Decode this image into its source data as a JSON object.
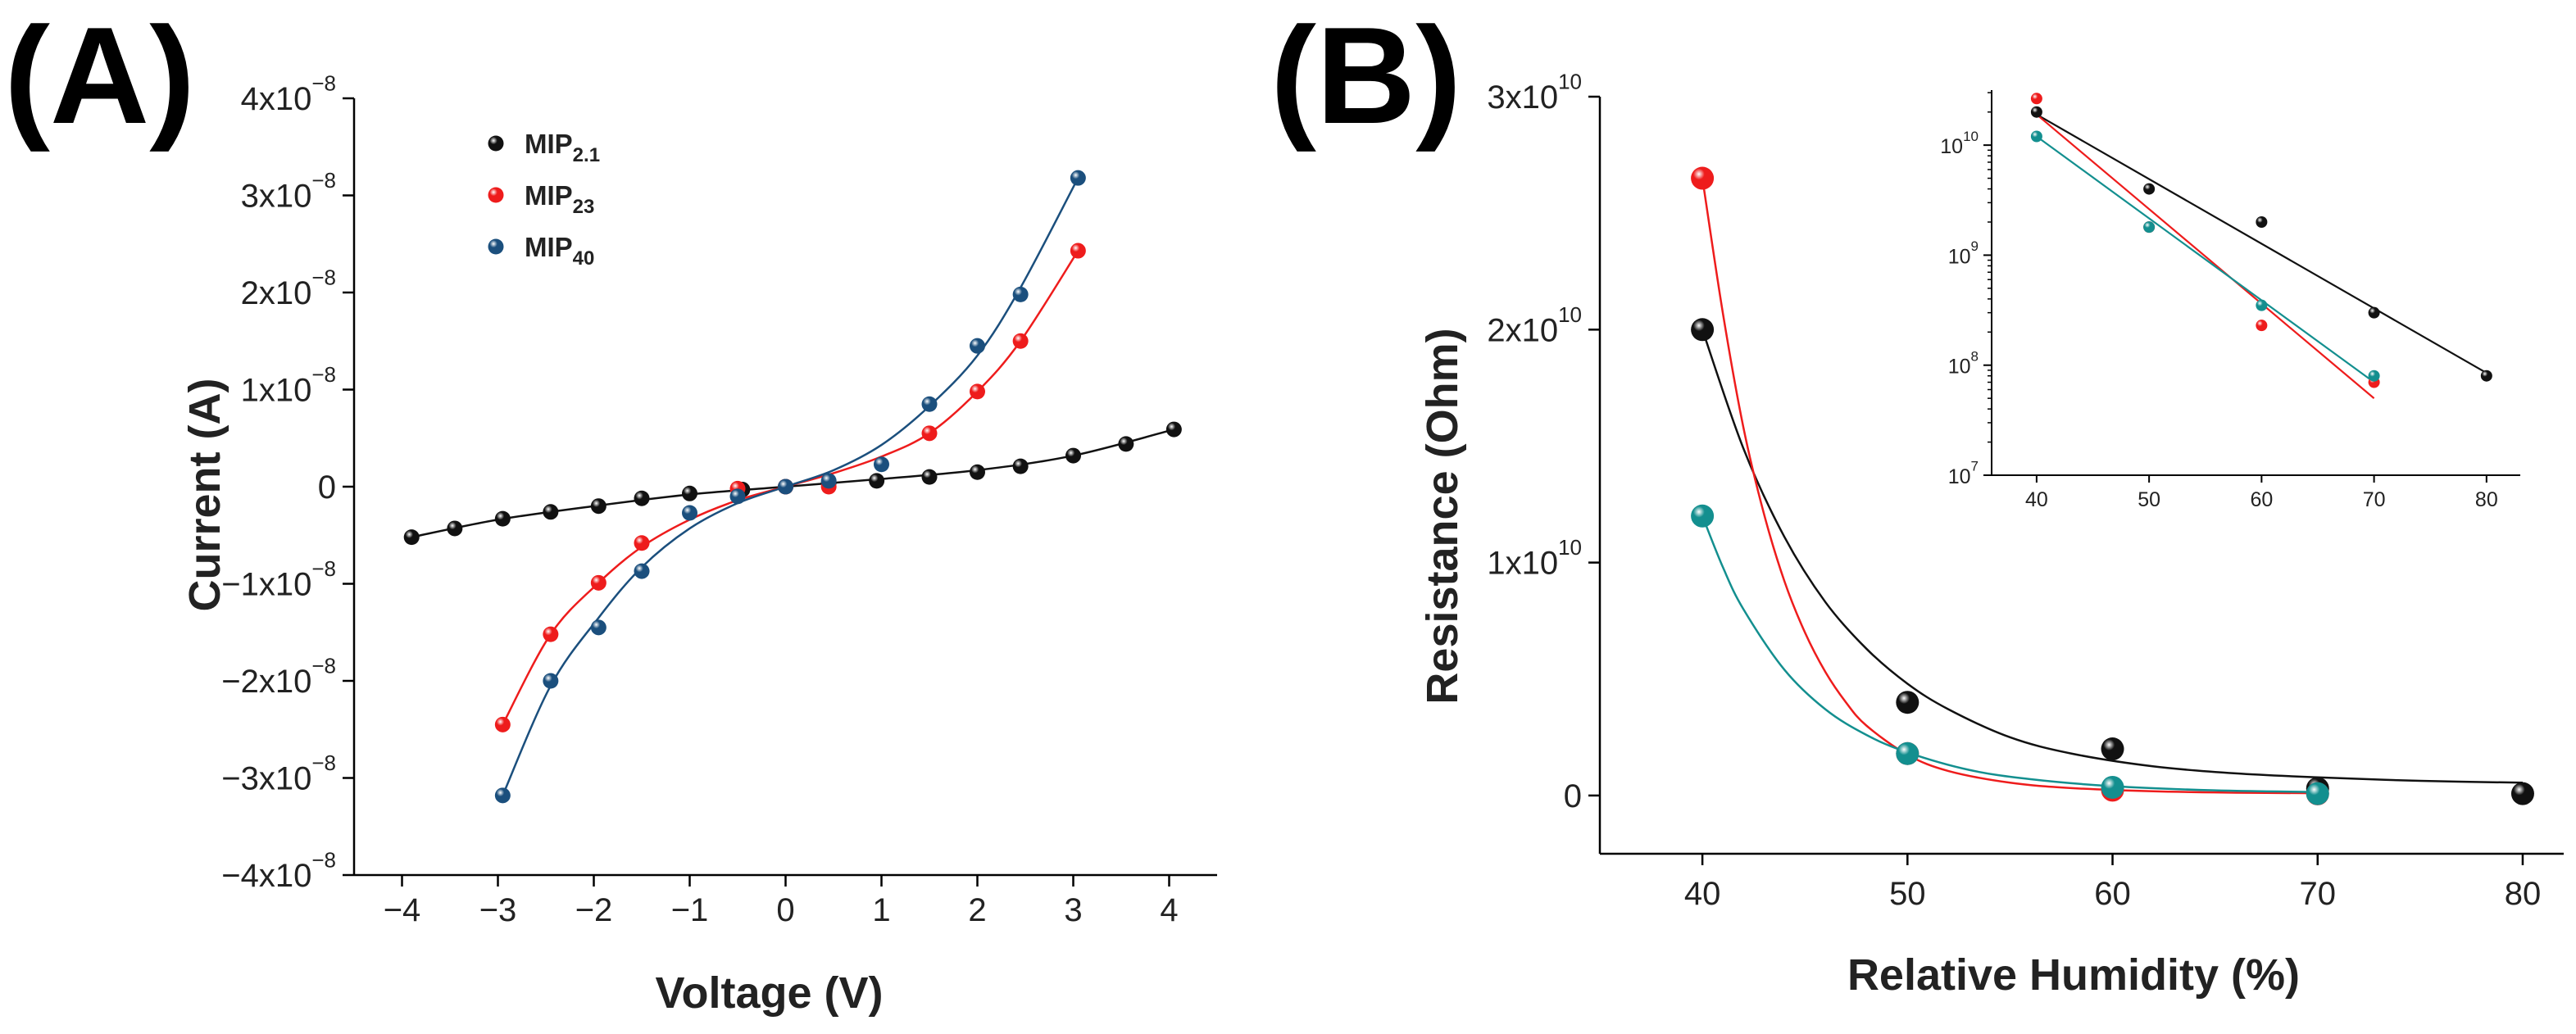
{
  "chart_data": [
    {
      "panel": "(A)",
      "type": "scatter",
      "xlabel": "Voltage (V)",
      "ylabel": "Current (A)",
      "xlim": [
        -4.5,
        4.5
      ],
      "ylim": [
        -4e-08,
        4e-08
      ],
      "x_ticks": [
        -4,
        -3,
        -2,
        -1,
        0,
        1,
        2,
        3,
        4
      ],
      "x_tick_labels": [
        "−4",
        "−3",
        "−2",
        "−1",
        "0",
        "1",
        "2",
        "3",
        "4"
      ],
      "y_ticks": [
        -4e-08,
        -3e-08,
        -2e-08,
        -1e-08,
        0,
        1e-08,
        2e-08,
        3e-08,
        4e-08
      ],
      "y_tick_labels": [
        {
          "base": "−4x10",
          "exp": "−8"
        },
        {
          "base": "−3x10",
          "exp": "−8"
        },
        {
          "base": "−2x10",
          "exp": "−8"
        },
        {
          "base": "−1x10",
          "exp": "−8"
        },
        {
          "base": "0",
          "exp": ""
        },
        {
          "base": "1x10",
          "exp": "−8"
        },
        {
          "base": "2x10",
          "exp": "−8"
        },
        {
          "base": "3x10",
          "exp": "−8"
        },
        {
          "base": "4x10",
          "exp": "−8"
        }
      ],
      "legend_position": "top-left",
      "series": [
        {
          "name": "MIP2.1",
          "label_main": "MIP",
          "label_sub": "2.1",
          "color": "#111111",
          "x": [
            -3.9,
            -3.45,
            -2.95,
            -2.45,
            -1.95,
            -1.5,
            -1.0,
            -0.45,
            0.0,
            0.45,
            0.95,
            1.5,
            2.0,
            2.45,
            3.0,
            3.55,
            4.05
          ],
          "y": [
            -5.2e-09,
            -4.3e-09,
            -3.3e-09,
            -2.6e-09,
            -2e-09,
            -1.2e-09,
            -7e-10,
            -3e-10,
            0,
            4e-10,
            6e-10,
            1e-09,
            1.5e-09,
            2.1e-09,
            3.2e-09,
            4.4e-09,
            5.9e-09
          ],
          "fit_x": [
            -3.9,
            -3.0,
            -2.0,
            -1.0,
            0.0,
            1.0,
            2.0,
            3.0,
            4.05
          ],
          "fit_y": [
            -5.2e-09,
            -3.4e-09,
            -2e-09,
            -8e-10,
            0,
            8e-10,
            1.7e-09,
            3.2e-09,
            5.9e-09
          ]
        },
        {
          "name": "MIP23",
          "label_main": "MIP",
          "label_sub": "23",
          "color": "#ee1c1c",
          "x": [
            -2.95,
            -2.45,
            -1.95,
            -1.5,
            -0.5,
            0.0,
            0.45,
            1.5,
            2.0,
            2.45,
            3.05
          ],
          "y": [
            -2.45e-08,
            -1.52e-08,
            -9.9e-09,
            -5.8e-09,
            -2e-10,
            0,
            0,
            5.5e-09,
            9.8e-09,
            1.5e-08,
            2.43e-08
          ],
          "fit_x": [
            -2.95,
            -2.45,
            -1.95,
            -1.5,
            -1.0,
            -0.5,
            0.0,
            0.5,
            1.0,
            1.5,
            2.0,
            2.45,
            3.05
          ],
          "fit_y": [
            -2.45e-08,
            -1.52e-08,
            -9.9e-09,
            -6.2e-09,
            -3.4e-09,
            -1.4e-09,
            0,
            1.4e-09,
            3.1e-09,
            5.5e-09,
            9.8e-09,
            1.5e-08,
            2.43e-08
          ]
        },
        {
          "name": "MIP40",
          "label_main": "MIP",
          "label_sub": "40",
          "color": "#1b4f7d",
          "x": [
            -2.95,
            -2.45,
            -1.95,
            -1.5,
            -1.0,
            -0.5,
            0.0,
            0.45,
            1.0,
            1.5,
            2.0,
            2.45,
            3.05
          ],
          "y": [
            -3.18e-08,
            -2e-08,
            -1.45e-08,
            -8.7e-09,
            -2.7e-09,
            -1e-09,
            0,
            6e-10,
            2.3e-09,
            8.5e-09,
            1.45e-08,
            1.98e-08,
            3.18e-08
          ],
          "fit_x": [
            -2.95,
            -2.45,
            -1.95,
            -1.5,
            -1.0,
            -0.5,
            0.0,
            0.5,
            1.0,
            1.5,
            2.0,
            2.45,
            3.05
          ],
          "fit_y": [
            -3.18e-08,
            -2.05e-08,
            -1.35e-08,
            -8.3e-09,
            -4.3e-09,
            -1.7e-09,
            0,
            1.7e-09,
            4.3e-09,
            8.3e-09,
            1.35e-08,
            2.05e-08,
            3.18e-08
          ]
        }
      ]
    },
    {
      "panel": "(B)",
      "type": "scatter",
      "xlabel": "Relative Humidity (%)",
      "ylabel": "Resistance (Ohm)",
      "xlim": [
        35,
        82
      ],
      "ylim": [
        -2500000000.0,
        30000000000.0
      ],
      "x_ticks": [
        40,
        50,
        60,
        70,
        80
      ],
      "x_tick_labels": [
        "40",
        "50",
        "60",
        "70",
        "80"
      ],
      "y_ticks": [
        0,
        10000000000.0,
        20000000000.0,
        30000000000.0
      ],
      "y_tick_labels": [
        {
          "base": "0",
          "exp": ""
        },
        {
          "base": "1x10",
          "exp": "10"
        },
        {
          "base": "2x10",
          "exp": "10"
        },
        {
          "base": "3x10",
          "exp": "10"
        }
      ],
      "series": [
        {
          "name": "MIP2.1",
          "color": "#111111",
          "x": [
            40,
            50,
            60,
            70,
            80
          ],
          "y": [
            20000000000.0,
            4000000000.0,
            2000000000.0,
            300000000.0,
            80000000.0
          ],
          "fit_x": [
            40,
            42,
            44,
            46,
            48,
            50,
            52,
            55,
            58,
            62,
            66,
            70,
            75,
            80
          ],
          "fit_y": [
            20000000000.0,
            14900000000.0,
            11100000000.0,
            8300000000.0,
            6300000000.0,
            4800000000.0,
            3700000000.0,
            2500000000.0,
            1800000000.0,
            1250000000.0,
            950000000.0,
            780000000.0,
            630000000.0,
            550000000.0
          ]
        },
        {
          "name": "MIP23",
          "color": "#ee1c1c",
          "x": [
            40,
            50,
            60,
            70
          ],
          "y": [
            26500000000.0,
            1800000000.0,
            230000000.0,
            70000000.0
          ],
          "fit_x": [
            40,
            41,
            42,
            43,
            44,
            45,
            46,
            47,
            48,
            50,
            52,
            55,
            58,
            62,
            66,
            70
          ],
          "fit_y": [
            26500000000.0,
            20700000000.0,
            15800000000.0,
            12100000000.0,
            9200000000.0,
            7000000000.0,
            5300000000.0,
            4000000000.0,
            3000000000.0,
            1750000000.0,
            1050000000.0,
            550000000.0,
            320000000.0,
            180000000.0,
            120000000.0,
            100000000.0
          ]
        },
        {
          "name": "MIP40",
          "color": "#138f8f",
          "x": [
            40,
            50,
            60,
            70
          ],
          "y": [
            12000000000.0,
            1800000000.0,
            350000000.0,
            80000000.0
          ],
          "fit_x": [
            40,
            41,
            42,
            44,
            46,
            48,
            50,
            53,
            56,
            60,
            65,
            70
          ],
          "fit_y": [
            12000000000.0,
            9800000000.0,
            8000000000.0,
            5400000000.0,
            3700000000.0,
            2600000000.0,
            1850000000.0,
            1100000000.0,
            700000000.0,
            400000000.0,
            220000000.0,
            150000000.0
          ]
        }
      ],
      "inset": {
        "type": "line",
        "scale": "log",
        "xlim": [
          36,
          83
        ],
        "ylim_log10": [
          7,
          10.5
        ],
        "x_ticks": [
          40,
          50,
          60,
          70,
          80
        ],
        "x_tick_labels": [
          "40",
          "50",
          "60",
          "70",
          "80"
        ],
        "y_ticks_log10": [
          7,
          8,
          9,
          10
        ],
        "y_tick_labels": [
          {
            "base": "10",
            "exp": "7"
          },
          {
            "base": "10",
            "exp": "8"
          },
          {
            "base": "10",
            "exp": "9"
          },
          {
            "base": "10",
            "exp": "10"
          }
        ],
        "series": [
          {
            "name": "MIP2.1",
            "color": "#111111",
            "x": [
              40,
              50,
              60,
              70,
              80
            ],
            "y": [
              20000000000.0,
              4000000000.0,
              2000000000.0,
              300000000.0,
              80000000.0
            ],
            "fit_x": [
              40,
              80
            ],
            "fit_y": [
              19000000000.0,
              85000000.0
            ]
          },
          {
            "name": "MIP23",
            "color": "#ee1c1c",
            "x": [
              40,
              50,
              60,
              70
            ],
            "y": [
              26500000000.0,
              1800000000.0,
              230000000.0,
              70000000.0
            ],
            "fit_x": [
              40,
              70
            ],
            "fit_y": [
              19000000000.0,
              50000000.0
            ]
          },
          {
            "name": "MIP40",
            "color": "#138f8f",
            "x": [
              40,
              50,
              60,
              70
            ],
            "y": [
              12000000000.0,
              1800000000.0,
              350000000.0,
              80000000.0
            ],
            "fit_x": [
              40,
              70
            ],
            "fit_y": [
              12000000000.0,
              70000000.0
            ]
          }
        ]
      }
    }
  ]
}
